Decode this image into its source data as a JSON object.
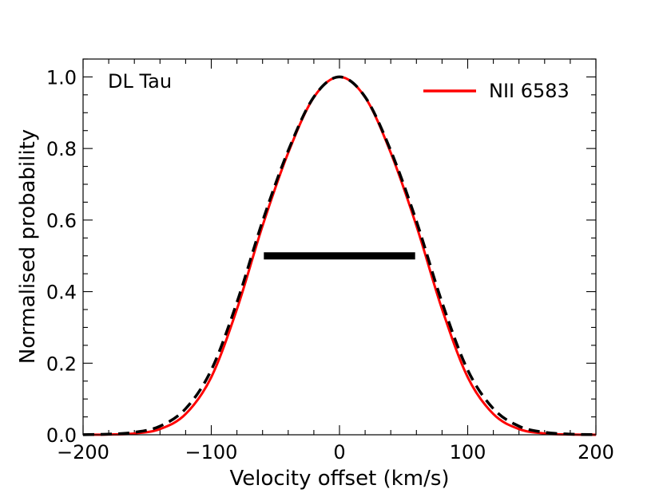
{
  "chart_data": {
    "type": "line",
    "title": "",
    "xlabel": "Velocity offset (km/s)",
    "ylabel": "Normalised probability",
    "xlim": [
      -200,
      200
    ],
    "ylim": [
      0,
      1.05
    ],
    "grid": false,
    "xticks": [
      -200,
      -100,
      0,
      100,
      200
    ],
    "xtick_labels": [
      "−200",
      "−100",
      "0",
      "100",
      "200"
    ],
    "yticks": [
      0,
      0.2,
      0.4,
      0.6,
      0.8,
      1.0
    ],
    "ytick_labels": [
      "0.0",
      "0.2",
      "0.4",
      "0.6",
      "0.8",
      "1.0"
    ],
    "annotation": "DL Tau",
    "legend": {
      "placement": "top-right",
      "entries": [
        "NII 6583"
      ]
    },
    "series": [
      {
        "name": "NII 6583",
        "color": "#ff0000",
        "style": "solid",
        "x": [
          -200,
          -180,
          -160,
          -140,
          -120,
          -100,
          -80,
          -60,
          -40,
          -20,
          0,
          20,
          40,
          60,
          80,
          100,
          120,
          140,
          160,
          180,
          200
        ],
        "y": [
          0.0001,
          0.0007,
          0.0037,
          0.016,
          0.058,
          0.161,
          0.351,
          0.584,
          0.788,
          0.943,
          1.0,
          0.943,
          0.788,
          0.584,
          0.351,
          0.161,
          0.058,
          0.016,
          0.0037,
          0.0007,
          0.0001
        ]
      },
      {
        "color": "#000000",
        "style": "dashed",
        "x": [
          -200,
          -180,
          -160,
          -140,
          -120,
          -100,
          -80,
          -60,
          -40,
          -20,
          0,
          20,
          40,
          60,
          80,
          100,
          120,
          140,
          160,
          180,
          200
        ],
        "y": [
          0.0004,
          0.0018,
          0.0069,
          0.024,
          0.073,
          0.181,
          0.37,
          0.597,
          0.794,
          0.944,
          1.0,
          0.944,
          0.794,
          0.597,
          0.37,
          0.181,
          0.073,
          0.024,
          0.0069,
          0.0018,
          0.0004
        ]
      }
    ],
    "fwhm_bar": {
      "x_start": -59,
      "x_end": 59,
      "y": 0.5,
      "color": "#000000"
    }
  }
}
